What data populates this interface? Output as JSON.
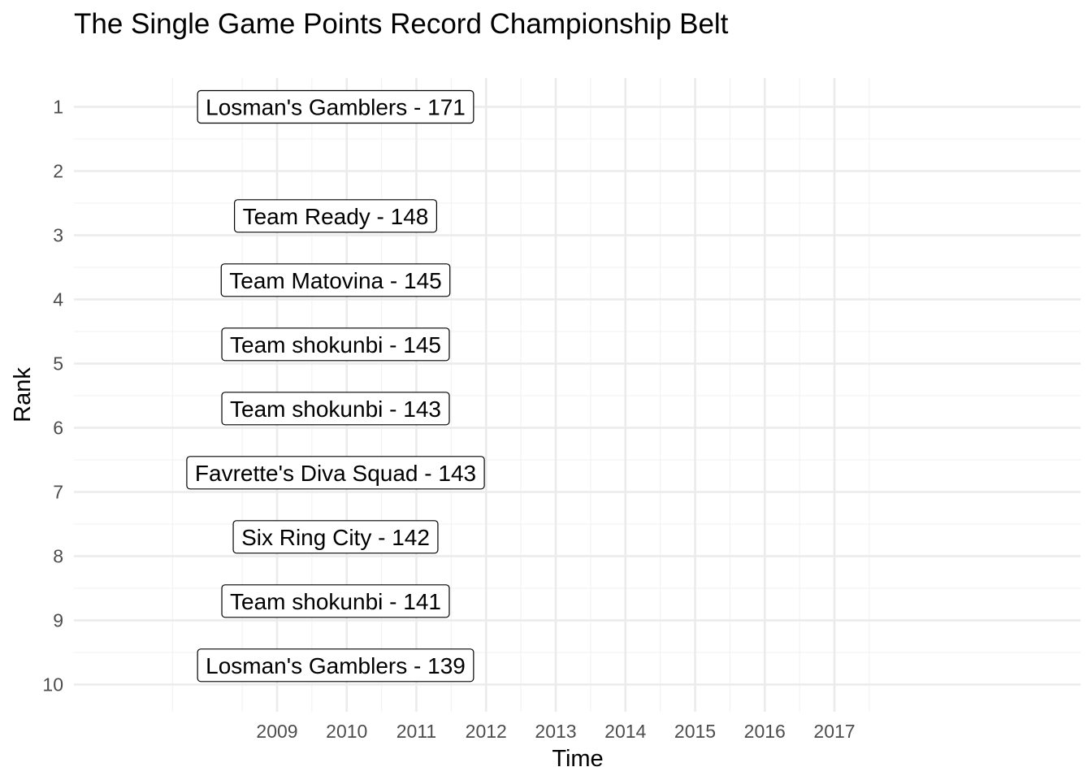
{
  "chart_data": {
    "type": "label",
    "title": "The Single Game Points Record Championship Belt",
    "xlabel": "Time",
    "ylabel": "Rank",
    "x_ticks": [
      "2009",
      "2010",
      "2011",
      "2012",
      "2013",
      "2014",
      "2015",
      "2016",
      "2017"
    ],
    "y_ticks": [
      "1",
      "2",
      "3",
      "4",
      "5",
      "6",
      "7",
      "8",
      "9",
      "10"
    ],
    "y_reversed": true,
    "grid": true,
    "labels": [
      {
        "rank": 1,
        "team": "Losman's Gamblers",
        "points": 171,
        "text": "Losman's Gamblers - 171"
      },
      {
        "rank": 2.7,
        "team": "Team Ready",
        "points": 148,
        "text": "Team Ready - 148"
      },
      {
        "rank": 3.7,
        "team": "Team Matovina",
        "points": 145,
        "text": "Team Matovina - 145"
      },
      {
        "rank": 4.7,
        "team": "Team shokunbi",
        "points": 145,
        "text": "Team shokunbi - 145"
      },
      {
        "rank": 5.7,
        "team": "Team shokunbi",
        "points": 143,
        "text": "Team shokunbi - 143"
      },
      {
        "rank": 6.7,
        "team": "Favrette's Diva Squad",
        "points": 143,
        "text": "Favrette's Diva Squad - 143"
      },
      {
        "rank": 7.7,
        "team": "Six Ring City",
        "points": 142,
        "text": "Six Ring City - 142"
      },
      {
        "rank": 8.7,
        "team": "Team shokunbi",
        "points": 141,
        "text": "Team shokunbi - 141"
      },
      {
        "rank": 9.7,
        "team": "Losman's Gamblers",
        "points": 139,
        "text": "Losman's Gamblers - 139"
      }
    ]
  }
}
